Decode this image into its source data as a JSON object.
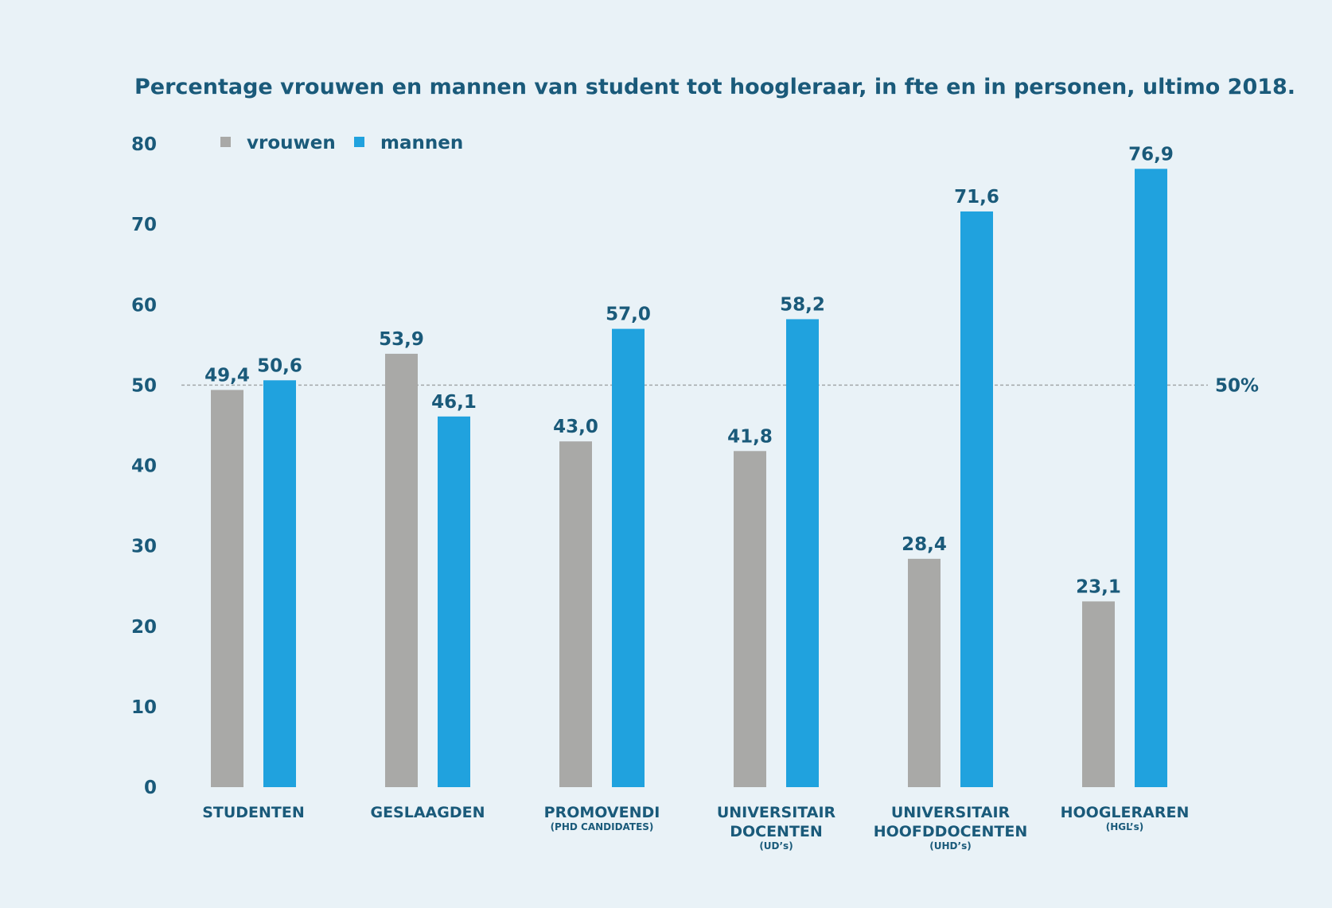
{
  "chart_data": {
    "type": "bar",
    "title": "Percentage vrouwen en mannen van student tot hoogleraar, in fte en in personen, ultimo 2018.",
    "categories": [
      {
        "lines": [
          "STUDENTEN"
        ],
        "sub": ""
      },
      {
        "lines": [
          "GESLAAGDEN"
        ],
        "sub": ""
      },
      {
        "lines": [
          "PROMOVENDI"
        ],
        "sub": "(PHD CANDIDATES)"
      },
      {
        "lines": [
          "UNIVERSITAIR",
          "DOCENTEN"
        ],
        "sub": "(UD’s)"
      },
      {
        "lines": [
          "UNIVERSITAIR",
          "HOOFDDOCENTEN"
        ],
        "sub": "(UHD’s)"
      },
      {
        "lines": [
          "HOOGLERAREN"
        ],
        "sub": "(HGL’s)"
      }
    ],
    "series": [
      {
        "name": "vrouwen",
        "color": "#a9a9a7",
        "values": [
          49.4,
          53.9,
          43.0,
          41.8,
          28.4,
          23.1
        ],
        "labels": [
          "49,4",
          "53,9",
          "43,0",
          "41,8",
          "28,4",
          "23,1"
        ]
      },
      {
        "name": "mannen",
        "color": "#20a2de",
        "values": [
          50.6,
          46.1,
          57.0,
          58.2,
          71.6,
          76.9
        ],
        "labels": [
          "50,6",
          "46,1",
          "57,0",
          "58,2",
          "71,6",
          "76,9"
        ]
      }
    ],
    "ylim": [
      0,
      80
    ],
    "yticks": [
      0,
      10,
      20,
      30,
      40,
      50,
      60,
      70,
      80
    ],
    "reference_line": {
      "value": 50,
      "label": "50%"
    },
    "legend_position": "top-left",
    "grid": false
  }
}
